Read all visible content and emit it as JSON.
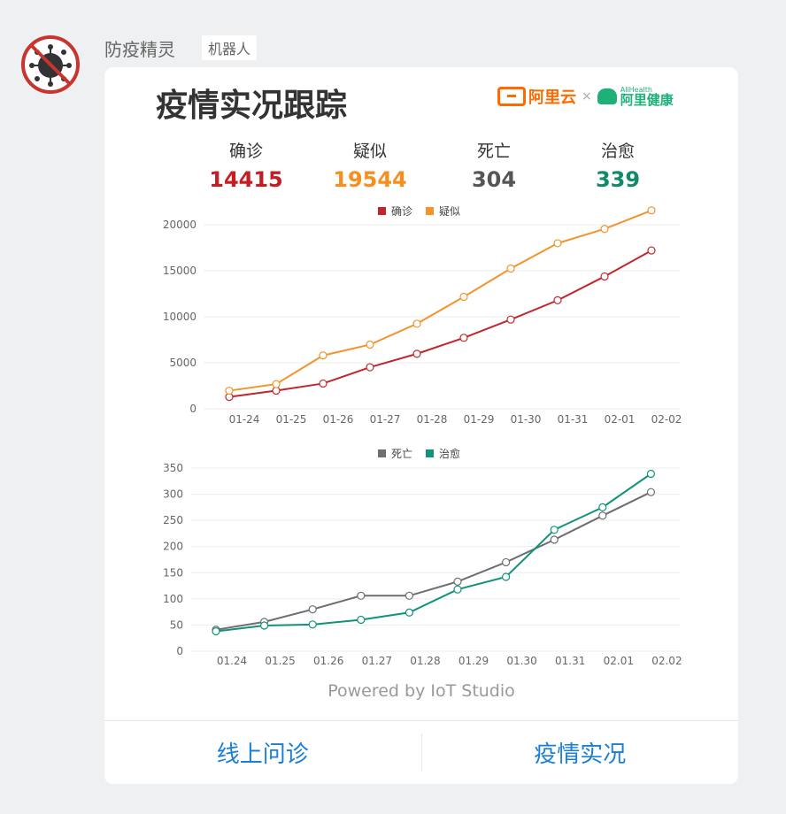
{
  "sender": {
    "name": "防疫精灵",
    "badge": "机器人",
    "avatar_icon": "virus-prohibited-icon"
  },
  "card": {
    "title": "疫情实况跟踪",
    "brand": {
      "aliyun": "阿里云",
      "separator": "×",
      "alihealth_en": "AliHealth",
      "alihealth_cn": "阿里健康"
    },
    "stats": [
      {
        "label": "确诊",
        "value": "14415",
        "color": "#c41d23"
      },
      {
        "label": "疑似",
        "value": "19544",
        "color": "#f58f1f"
      },
      {
        "label": "死亡",
        "value": "304",
        "color": "#555555"
      },
      {
        "label": "治愈",
        "value": "339",
        "color": "#128a6a"
      }
    ],
    "powered": "Powered by IoT Studio",
    "actions": [
      "线上问诊",
      "疫情实况"
    ]
  },
  "chart_data": [
    {
      "type": "line",
      "categories": [
        "01-24",
        "01-25",
        "01-26",
        "01-27",
        "01-28",
        "01-29",
        "01-30",
        "01-31",
        "02-01",
        "02-02"
      ],
      "series": [
        {
          "name": "确诊",
          "color": "#c0272d",
          "values": [
            1287,
            1975,
            2744,
            4515,
            5974,
            7711,
            9692,
            11791,
            14380,
            17205
          ]
        },
        {
          "name": "疑似",
          "color": "#f3932b",
          "values": [
            1965,
            2684,
            5794,
            6973,
            9239,
            12167,
            15238,
            17988,
            19544,
            21558
          ]
        }
      ],
      "ylim": [
        0,
        20000
      ],
      "yticks": [
        "0",
        "5000",
        "10000",
        "15000",
        "20000"
      ],
      "legend": "top-center",
      "grid": true
    },
    {
      "type": "line",
      "categories": [
        "01.24",
        "01.25",
        "01.26",
        "01.27",
        "01.28",
        "01.29",
        "01.30",
        "01.31",
        "02.01",
        "02.02"
      ],
      "series": [
        {
          "name": "死亡",
          "color": "#6e6e6e",
          "values": [
            41,
            56,
            80,
            106,
            106,
            133,
            170,
            213,
            259,
            304
          ]
        },
        {
          "name": "治愈",
          "color": "#10937a",
          "values": [
            38,
            49,
            51,
            60,
            74,
            118,
            142,
            232,
            275,
            339
          ]
        }
      ],
      "ylim": [
        0,
        350
      ],
      "yticks": [
        "0",
        "50",
        "100",
        "150",
        "200",
        "250",
        "300",
        "350"
      ],
      "legend": "top-center",
      "grid": true
    }
  ]
}
